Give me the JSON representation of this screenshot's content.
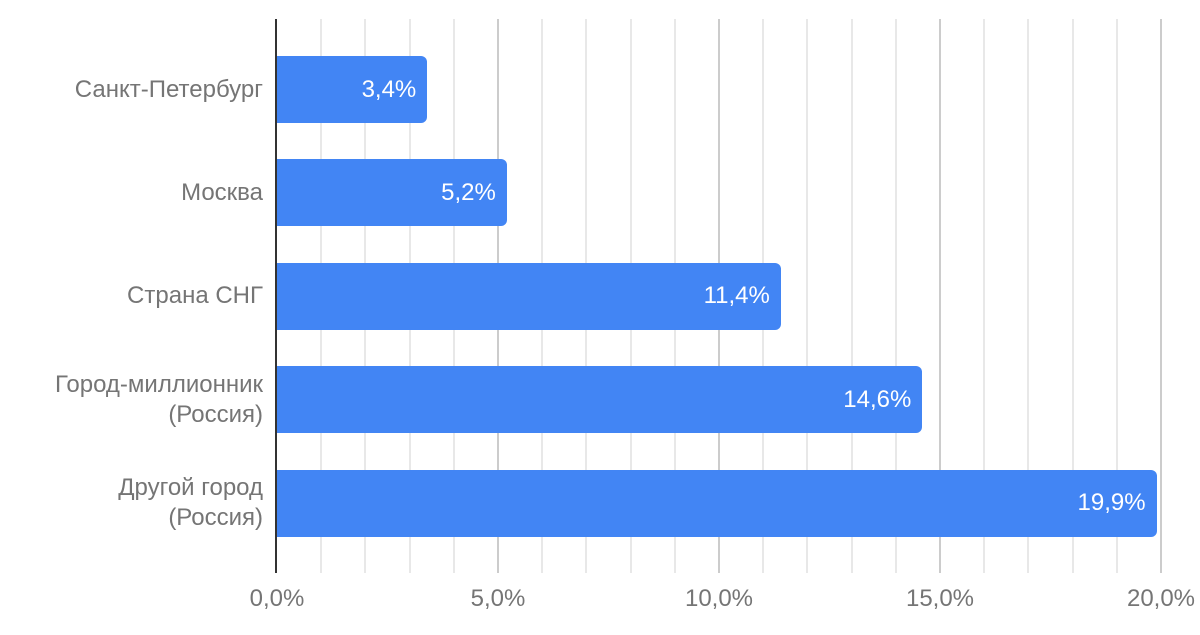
{
  "chart_data": {
    "type": "bar",
    "orientation": "horizontal",
    "title": "",
    "xlabel": "",
    "ylabel": "",
    "legend": "none",
    "grid": true,
    "categories": [
      "Санкт-Петербург",
      "Москва",
      "Страна СНГ",
      "Город-миллионник\n(Россия)",
      "Другой город\n(Россия)"
    ],
    "values": [
      3.4,
      5.2,
      11.4,
      14.6,
      19.9
    ],
    "value_labels": [
      "3,4%",
      "5,2%",
      "11,4%",
      "14,6%",
      "19,9%"
    ],
    "x_ticks": [
      {
        "value": 0,
        "label": "0,0%"
      },
      {
        "value": 5,
        "label": "5,0%"
      },
      {
        "value": 10,
        "label": "10,0%"
      },
      {
        "value": 15,
        "label": "15,0%"
      },
      {
        "value": 20,
        "label": "20,0%"
      }
    ],
    "xlim": [
      0,
      20
    ],
    "minor_grid_step": 1,
    "major_grid_step": 5,
    "colors": {
      "bar": "#4285f4",
      "value_label": "#ffffff",
      "axis_label": "#757575",
      "axis_line": "#333333",
      "minor_gridline": "#e8e8e8",
      "major_gridline": "#cccccc",
      "background": "#ffffff"
    }
  }
}
